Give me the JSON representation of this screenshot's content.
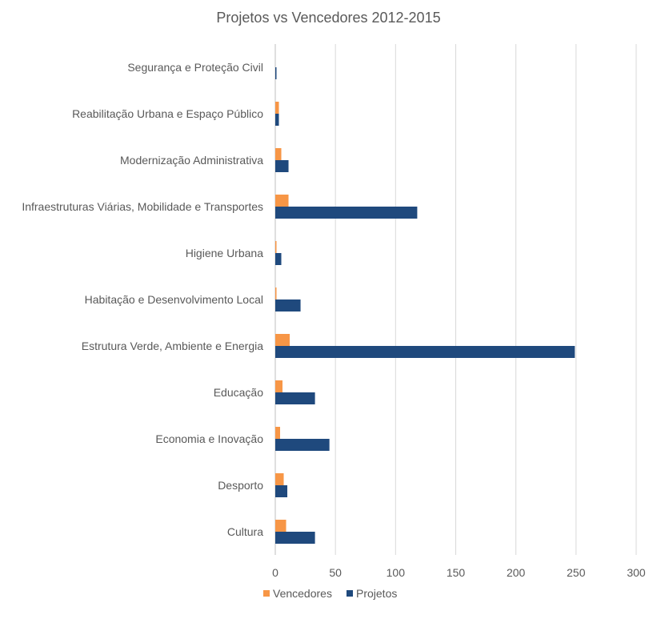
{
  "chart_data": {
    "type": "bar",
    "orientation": "horizontal",
    "title": "Projetos vs Vencedores 2012-2015",
    "xlabel": "",
    "ylabel": "",
    "categories": [
      "Cultura",
      "Desporto",
      "Economia e Inovação",
      "Educação",
      "Estrutura Verde, Ambiente e Energia",
      "Habitação e Desenvolvimento Local",
      "Higiene Urbana",
      "Infraestruturas Viárias, Mobilidade e Transportes",
      "Modernização Administrativa",
      "Reabilitação Urbana e Espaço Público",
      "Segurança e Proteção Civil"
    ],
    "series": [
      {
        "name": "Vencedores",
        "color": "#F79646",
        "values": [
          9,
          7,
          4,
          6,
          12,
          1,
          1,
          11,
          5,
          3,
          0
        ]
      },
      {
        "name": "Projetos",
        "color": "#1F497D",
        "values": [
          33,
          10,
          45,
          33,
          249,
          21,
          5,
          118,
          11,
          3,
          1
        ]
      }
    ],
    "xlim": [
      0,
      300
    ],
    "xticks": [
      0,
      50,
      100,
      150,
      200,
      250,
      300
    ],
    "grid": true,
    "legend": "bottom"
  }
}
